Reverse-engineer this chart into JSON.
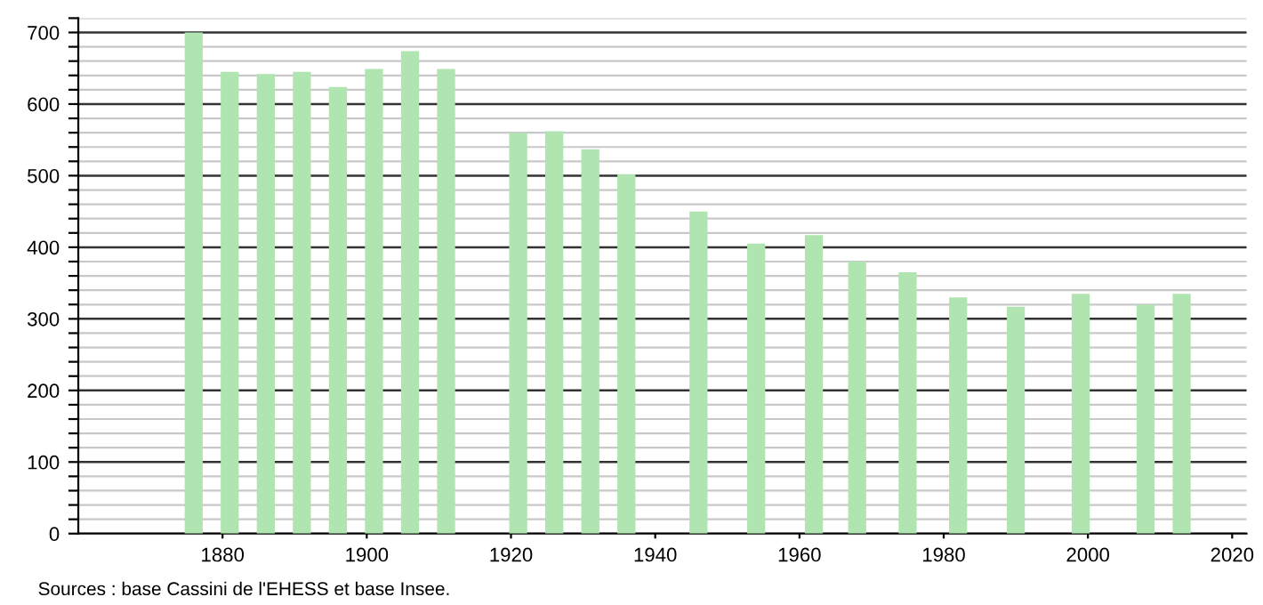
{
  "chart_data": {
    "type": "bar",
    "x": [
      1876,
      1881,
      1886,
      1891,
      1896,
      1901,
      1906,
      1911,
      1921,
      1926,
      1931,
      1936,
      1946,
      1954,
      1962,
      1968,
      1975,
      1982,
      1990,
      1999,
      2008,
      2013
    ],
    "values": [
      700,
      645,
      642,
      645,
      624,
      649,
      674,
      649,
      560,
      562,
      537,
      502,
      450,
      405,
      417,
      380,
      365,
      330,
      317,
      335,
      320,
      335
    ],
    "color": "#b0e4b0",
    "xlim": [
      1860,
      2022
    ],
    "xticks": [
      1880,
      1900,
      1920,
      1940,
      1960,
      1980,
      2000,
      2020
    ],
    "ylim": [
      0,
      720
    ],
    "yticks": [
      0,
      {
        "value": 20,
        "label": null
      },
      {
        "value": 40,
        "label": null
      },
      {
        "value": 60,
        "label": null
      },
      {
        "value": 80,
        "label": null
      },
      100,
      {
        "value": 120,
        "label": null
      },
      {
        "value": 140,
        "label": null
      },
      {
        "value": 160,
        "label": null
      },
      {
        "value": 180,
        "label": null
      },
      200,
      {
        "value": 220,
        "label": null
      },
      {
        "value": 240,
        "label": null
      },
      {
        "value": 260,
        "label": null
      },
      {
        "value": 280,
        "label": null
      },
      300,
      {
        "value": 320,
        "label": null
      },
      {
        "value": 340,
        "label": null
      },
      {
        "value": 360,
        "label": null
      },
      {
        "value": 380,
        "label": null
      },
      400,
      {
        "value": 420,
        "label": null
      },
      {
        "value": 440,
        "label": null
      },
      {
        "value": 460,
        "label": null
      },
      {
        "value": 480,
        "label": null
      },
      500,
      {
        "value": 520,
        "label": null
      },
      {
        "value": 540,
        "label": null
      },
      {
        "value": 560,
        "label": null
      },
      {
        "value": 580,
        "label": null
      },
      600,
      {
        "value": 620,
        "label": null
      },
      {
        "value": 640,
        "label": null
      },
      {
        "value": 660,
        "label": null
      },
      {
        "value": 680,
        "label": null
      },
      700,
      {
        "value": 720,
        "label": null
      }
    ],
    "grid": "y",
    "annotations": [
      "Sources : base Cassini de l'EHESS et base Insee."
    ]
  }
}
